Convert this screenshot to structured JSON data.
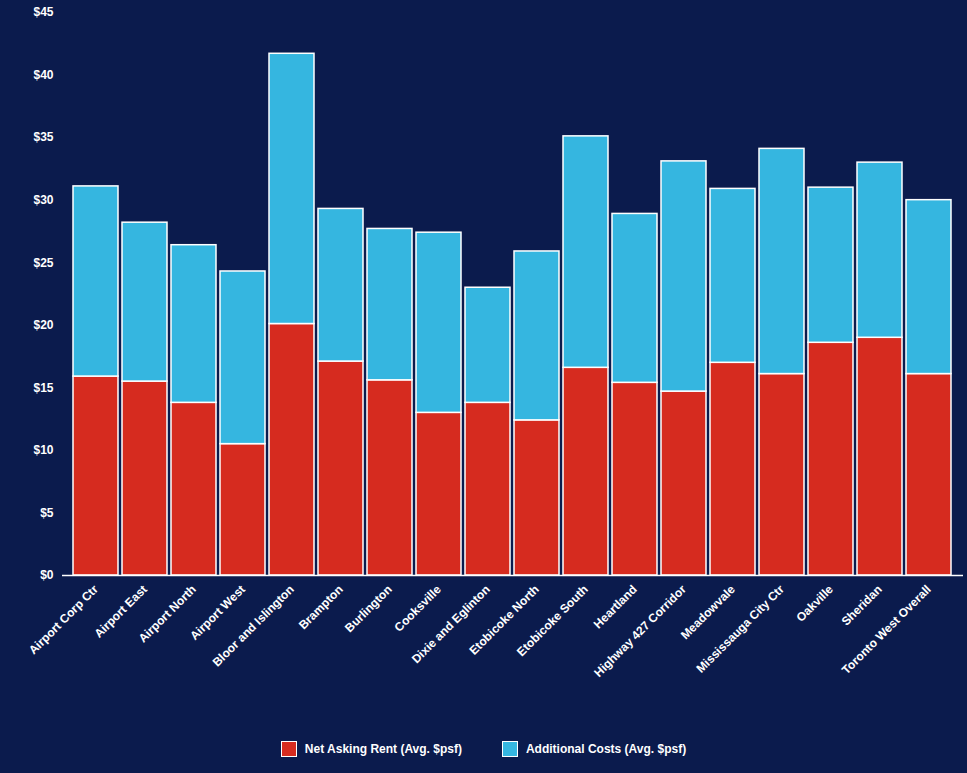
{
  "chart_data": {
    "type": "bar",
    "stacked": true,
    "legend": "bottom",
    "categories": [
      "Airport Corp Ctr",
      "Airport East",
      "Airport North",
      "Airport West",
      "Bloor and Islington",
      "Brampton",
      "Burlington",
      "Cooksville",
      "Dixie and Eglinton",
      "Etobicoke North",
      "Etobicoke South",
      "Heartland",
      "Highway 427 Corridor",
      "Meadowvale",
      "Mississauga City Ctr",
      "Oakville",
      "Sheridan",
      "Toronto West Overall"
    ],
    "series": [
      {
        "name": "Net Asking Rent (Avg. $psf)",
        "color": "#d62b1f",
        "values": [
          15.9,
          15.5,
          13.8,
          10.5,
          20.1,
          17.1,
          15.6,
          13.0,
          13.8,
          12.4,
          16.6,
          15.4,
          14.7,
          17.0,
          16.1,
          18.6,
          19.0,
          16.1
        ]
      },
      {
        "name": "Additional Costs (Avg. $psf)",
        "color": "#35b6e0",
        "values": [
          15.2,
          12.7,
          12.6,
          13.8,
          21.6,
          12.2,
          12.1,
          14.4,
          9.2,
          13.5,
          18.5,
          13.5,
          18.4,
          13.9,
          18.0,
          12.4,
          14.0,
          13.9
        ]
      }
    ],
    "ylim": [
      0,
      45
    ],
    "yticks": [
      {
        "value": 0,
        "label": "$0"
      },
      {
        "value": 5,
        "label": "$5"
      },
      {
        "value": 10,
        "label": "$10"
      },
      {
        "value": 15,
        "label": "$15"
      },
      {
        "value": 20,
        "label": "$20"
      },
      {
        "value": 25,
        "label": "$25"
      },
      {
        "value": 30,
        "label": "$30"
      },
      {
        "value": 35,
        "label": "$35"
      },
      {
        "value": 40,
        "label": "$40"
      },
      {
        "value": 45,
        "label": "$45"
      }
    ],
    "grid": false
  }
}
